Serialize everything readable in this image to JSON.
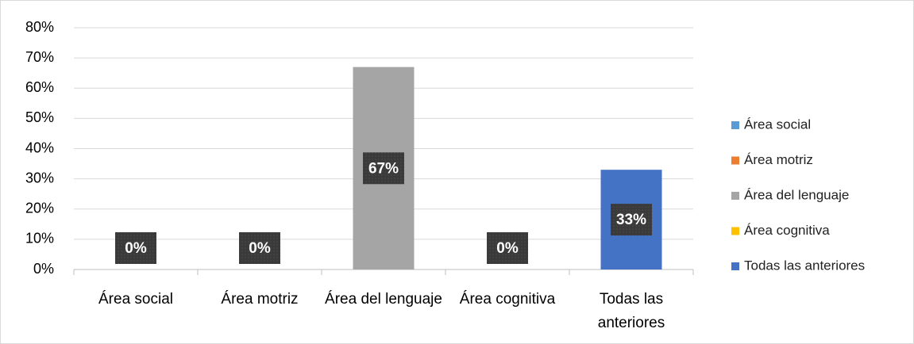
{
  "chart_data": {
    "type": "bar",
    "categories": [
      "Área social",
      "Área motriz",
      "Área del lenguaje",
      "Área cognitiva",
      "Todas las anteriores"
    ],
    "values": [
      0,
      0,
      67,
      0,
      33
    ],
    "value_labels": [
      "0%",
      "0%",
      "67%",
      "0%",
      "33%"
    ],
    "colors": [
      "#5b9bd5",
      "#ed7d31",
      "#a5a5a5",
      "#ffc000",
      "#4472c4"
    ],
    "ylim": [
      0,
      80
    ],
    "yticks": [
      {
        "value": 0,
        "label": "0%"
      },
      {
        "value": 10,
        "label": "10%"
      },
      {
        "value": 20,
        "label": "20%"
      },
      {
        "value": 30,
        "label": "30%"
      },
      {
        "value": 40,
        "label": "40%"
      },
      {
        "value": 50,
        "label": "50%"
      },
      {
        "value": 60,
        "label": "60%"
      },
      {
        "value": 70,
        "label": "70%"
      },
      {
        "value": 80,
        "label": "80%"
      }
    ],
    "grid": true,
    "legend": "right"
  }
}
